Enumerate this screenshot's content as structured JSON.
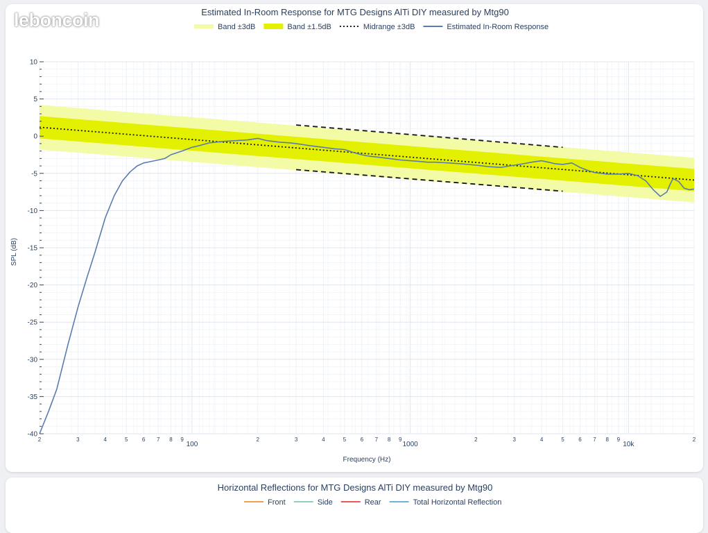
{
  "watermark": "leboncoin",
  "chart_data": [
    {
      "type": "line",
      "title": "Estimated In-Room Response for MTG Designs AlTi DIY measured by Mtg90",
      "xlabel": "Frequency (Hz)",
      "ylabel": "SPL (dB)",
      "x_scale": "log",
      "xlim": [
        20,
        20000
      ],
      "ylim": [
        -40,
        10
      ],
      "grid": true,
      "legend_position": "top-center",
      "x_tick_labels": [
        {
          "v": 20,
          "t": "2"
        },
        {
          "v": 30,
          "t": "3"
        },
        {
          "v": 40,
          "t": "4"
        },
        {
          "v": 50,
          "t": "5"
        },
        {
          "v": 60,
          "t": "6"
        },
        {
          "v": 70,
          "t": "7"
        },
        {
          "v": 80,
          "t": "8"
        },
        {
          "v": 90,
          "t": "9"
        },
        {
          "v": 100,
          "t": "100"
        },
        {
          "v": 200,
          "t": "2"
        },
        {
          "v": 300,
          "t": "3"
        },
        {
          "v": 400,
          "t": "4"
        },
        {
          "v": 500,
          "t": "5"
        },
        {
          "v": 600,
          "t": "6"
        },
        {
          "v": 700,
          "t": "7"
        },
        {
          "v": 800,
          "t": "8"
        },
        {
          "v": 900,
          "t": "9"
        },
        {
          "v": 1000,
          "t": "1000"
        },
        {
          "v": 2000,
          "t": "2"
        },
        {
          "v": 3000,
          "t": "3"
        },
        {
          "v": 4000,
          "t": "4"
        },
        {
          "v": 5000,
          "t": "5"
        },
        {
          "v": 6000,
          "t": "6"
        },
        {
          "v": 7000,
          "t": "7"
        },
        {
          "v": 8000,
          "t": "8"
        },
        {
          "v": 9000,
          "t": "9"
        },
        {
          "v": 10000,
          "t": "10k"
        },
        {
          "v": 20000,
          "t": "2"
        }
      ],
      "y_ticks": [
        10,
        5,
        0,
        -5,
        -10,
        -15,
        -20,
        -25,
        -30,
        -35,
        -40
      ],
      "series": [
        {
          "name": "Band ±3dB",
          "kind": "band",
          "color": "#f4fba6",
          "center": [
            1.2,
            -5.9
          ],
          "halfwidth": 3
        },
        {
          "name": "Band ±1.5dB",
          "kind": "band",
          "color": "#e3f000",
          "center": [
            1.2,
            -5.9
          ],
          "halfwidth": 1.5
        },
        {
          "name": "Midrange ±3dB",
          "kind": "dotted",
          "color": "#1a1a1a",
          "x": [
            20,
            20000
          ],
          "y": [
            1.2,
            -5.9
          ],
          "dashed_bounds": {
            "x": [
              300,
              5000
            ],
            "upper": [
              1.5,
              -1.5
            ],
            "lower": [
              -4.5,
              -7.4
            ]
          }
        },
        {
          "name": "Estimated In-Room Response",
          "kind": "line",
          "color": "#5b7bb0",
          "x": [
            20,
            22,
            24,
            27,
            30,
            33,
            36,
            40,
            44,
            48,
            52,
            56,
            60,
            65,
            70,
            75,
            80,
            90,
            100,
            110,
            120,
            140,
            160,
            180,
            200,
            220,
            250,
            280,
            300,
            350,
            400,
            450,
            500,
            550,
            600,
            650,
            700,
            750,
            800,
            850,
            900,
            1000,
            1100,
            1200,
            1300,
            1500,
            1700,
            2000,
            2300,
            2600,
            3000,
            3300,
            3600,
            4000,
            4300,
            4600,
            5000,
            5500,
            6000,
            6500,
            7000,
            7500,
            8000,
            9000,
            10000,
            11000,
            12000,
            13000,
            14000,
            15000,
            15500,
            16000,
            17000,
            18000,
            19000,
            20000
          ],
          "y": [
            -40,
            -37,
            -34,
            -28,
            -23,
            -19,
            -15.5,
            -11,
            -8,
            -6,
            -4.8,
            -4,
            -3.6,
            -3.4,
            -3.2,
            -3,
            -2.5,
            -2,
            -1.5,
            -1.2,
            -0.9,
            -0.7,
            -0.6,
            -0.5,
            -0.3,
            -0.6,
            -0.8,
            -0.9,
            -1,
            -1.3,
            -1.5,
            -1.7,
            -1.8,
            -2.2,
            -2.5,
            -2.7,
            -2.8,
            -2.9,
            -3,
            -3.1,
            -3.2,
            -3.3,
            -3.4,
            -3.5,
            -3.5,
            -3.6,
            -3.7,
            -3.9,
            -4.1,
            -4.2,
            -3.9,
            -3.7,
            -3.5,
            -3.3,
            -3.5,
            -3.7,
            -3.8,
            -3.6,
            -4.2,
            -4.6,
            -4.9,
            -5,
            -5.1,
            -5.1,
            -5,
            -5.3,
            -6,
            -7.2,
            -8.1,
            -7.5,
            -6.5,
            -5.7,
            -6.1,
            -7,
            -7.2,
            -7.1
          ]
        }
      ]
    },
    {
      "type": "line",
      "title": "Horizontal Reflections for MTG Designs AlTi DIY measured by Mtg90",
      "legend_position": "top-center",
      "series": [
        {
          "name": "Front",
          "color": "#f0a04b"
        },
        {
          "name": "Side",
          "color": "#8fcfb5"
        },
        {
          "name": "Rear",
          "color": "#e8575a"
        },
        {
          "name": "Total Horizontal Reflection",
          "color": "#6fb4d2"
        }
      ]
    }
  ]
}
